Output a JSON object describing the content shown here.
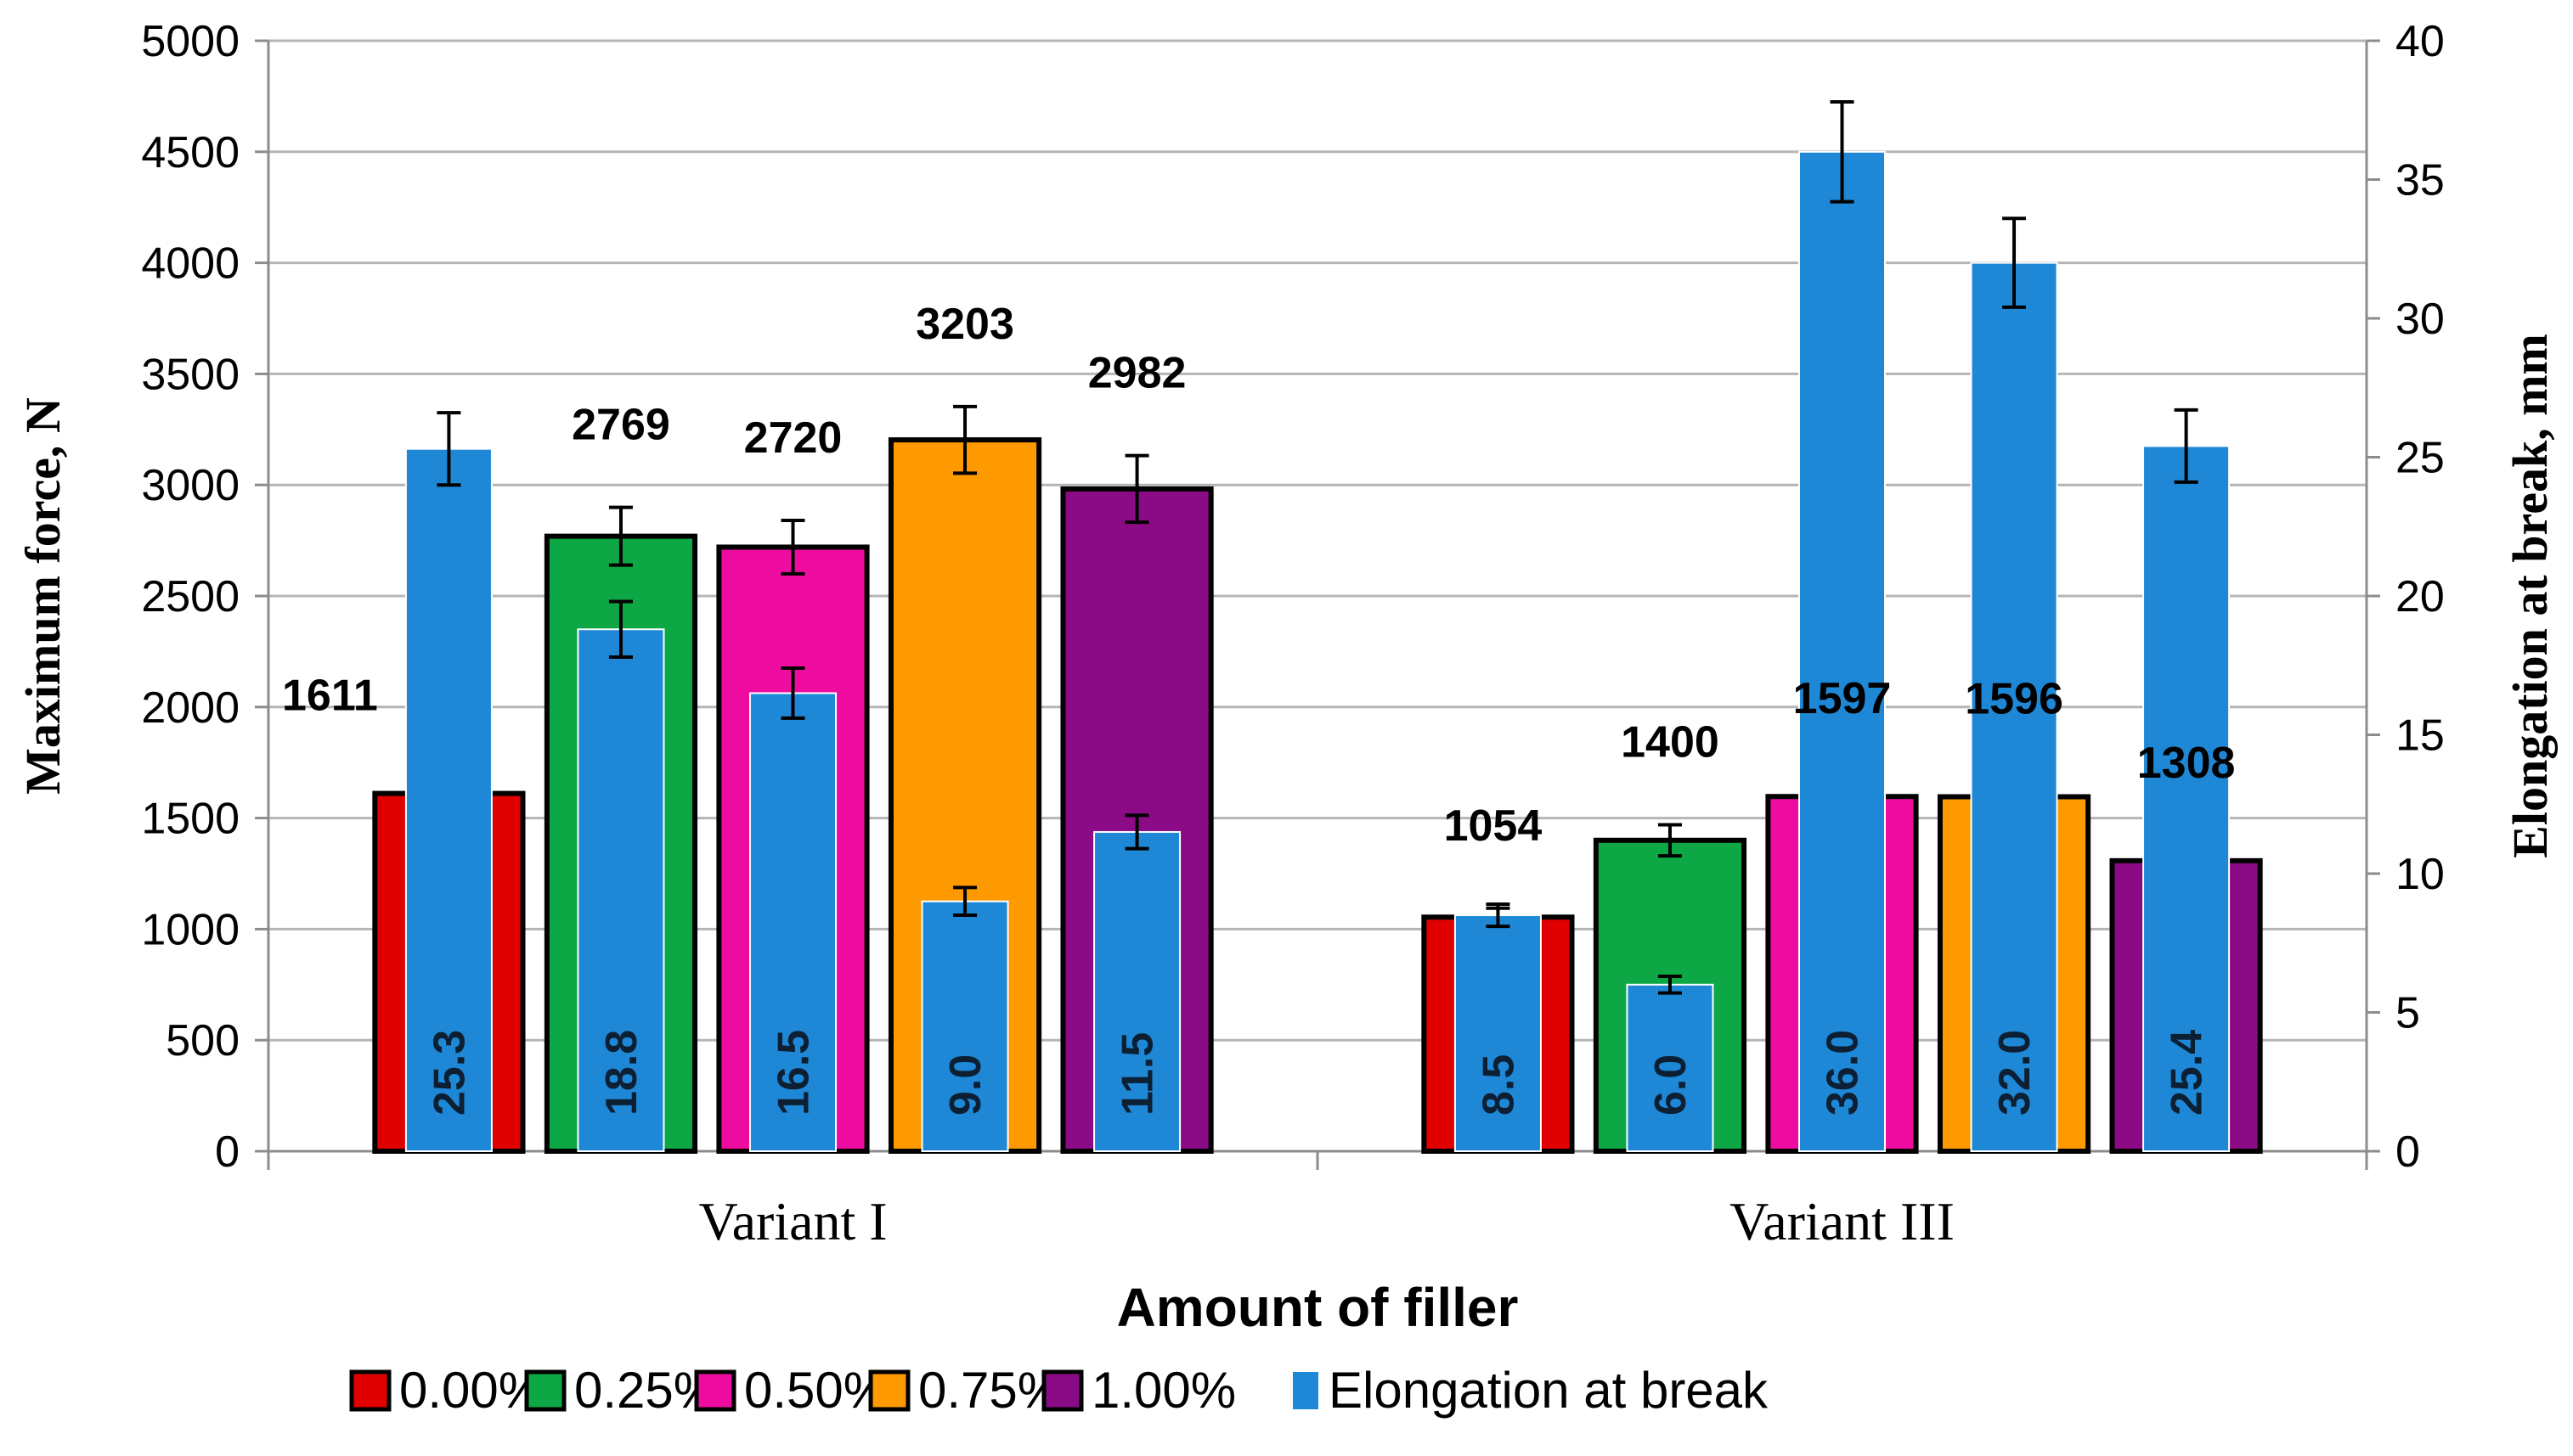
{
  "chart_data": {
    "type": "bar",
    "title": "",
    "xlabel": "Amount of filler",
    "ylabel": "Maximum force, N",
    "y2label": "Elongation at break, mm",
    "ylim": [
      0,
      5000
    ],
    "y2lim": [
      0,
      40
    ],
    "yticks": [
      0,
      500,
      1000,
      1500,
      2000,
      2500,
      3000,
      3500,
      4000,
      4500,
      5000
    ],
    "y2ticks": [
      0,
      5,
      10,
      15,
      20,
      25,
      30,
      35,
      40
    ],
    "grid": true,
    "categories": [
      "Variant I",
      "Variant III"
    ],
    "series": [
      {
        "name": "0.00%",
        "color": "#e00000",
        "values": [
          1611,
          1054
        ],
        "labels": [
          "1611",
          "1054"
        ],
        "errors": [
          0,
          40
        ]
      },
      {
        "name": "0.25%",
        "color": "#0da845",
        "values": [
          2769,
          1400
        ],
        "labels": [
          "2769",
          "1400"
        ],
        "errors": [
          130,
          70
        ]
      },
      {
        "name": "0.50%",
        "color": "#ee0ca0",
        "values": [
          2720,
          1597
        ],
        "labels": [
          "2720",
          "1597"
        ],
        "errors": [
          120,
          0
        ]
      },
      {
        "name": "0.75%",
        "color": "#ff9900",
        "values": [
          3203,
          1596
        ],
        "labels": [
          "3203",
          "1596"
        ],
        "errors": [
          150,
          0
        ]
      },
      {
        "name": "1.00%",
        "color": "#8b0a86",
        "values": [
          2982,
          1308
        ],
        "labels": [
          "2982",
          "1308"
        ],
        "errors": [
          150,
          0
        ]
      }
    ],
    "elongation": {
      "name": "Elongation at break",
      "color": "#1e88d6",
      "axis": "secondary",
      "values": [
        [
          25.3,
          18.8,
          16.5,
          9.0,
          11.5
        ],
        [
          8.5,
          6.0,
          36.0,
          32.0,
          25.4
        ]
      ],
      "labels": [
        [
          "25.3",
          "18.8",
          "16.5",
          "9.0",
          "11.5"
        ],
        [
          "8.5",
          "6.0",
          "36.0",
          "32.0",
          "25.4"
        ]
      ],
      "errors": [
        [
          1.3,
          1.0,
          0.9,
          0.5,
          0.6
        ],
        [
          0.4,
          0.3,
          1.8,
          1.6,
          1.3
        ]
      ]
    },
    "legend_position": "bottom"
  }
}
